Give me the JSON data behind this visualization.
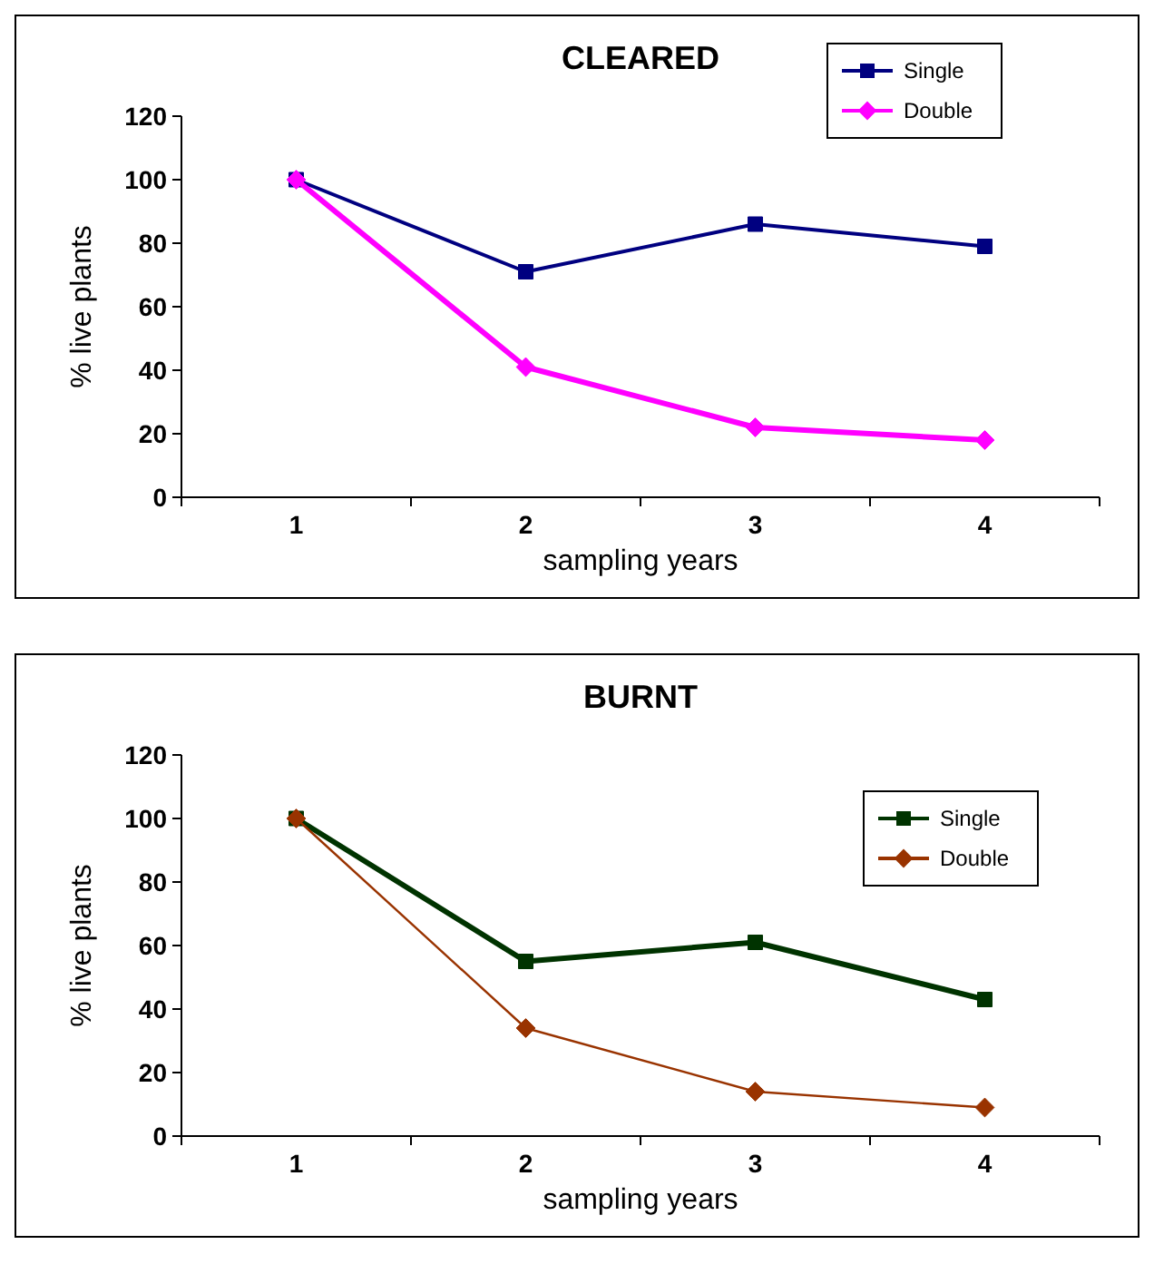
{
  "chart_data": [
    {
      "type": "line",
      "title": "CLEARED",
      "xlabel": "sampling years",
      "ylabel": "% live plants",
      "categories": [
        "1",
        "2",
        "3",
        "4"
      ],
      "ylim": [
        0,
        120
      ],
      "yticks": [
        0,
        20,
        40,
        60,
        80,
        100,
        120
      ],
      "grid": false,
      "legend": "top right",
      "series": [
        {
          "name": "Single",
          "color": "#000080",
          "marker": "square",
          "values": [
            100,
            71,
            86,
            79
          ]
        },
        {
          "name": "Double",
          "color": "#ff00ff",
          "marker": "diamond",
          "values": [
            100,
            41,
            22,
            18
          ]
        }
      ]
    },
    {
      "type": "line",
      "title": "BURNT",
      "xlabel": "sampling years",
      "ylabel": "% live plants",
      "categories": [
        "1",
        "2",
        "3",
        "4"
      ],
      "ylim": [
        0,
        120
      ],
      "yticks": [
        0,
        20,
        40,
        60,
        80,
        100,
        120
      ],
      "grid": false,
      "legend": "right",
      "series": [
        {
          "name": "Single",
          "color": "#003300",
          "marker": "square",
          "values": [
            100,
            55,
            61,
            43
          ]
        },
        {
          "name": "Double",
          "color": "#993300",
          "marker": "diamond",
          "values": [
            100,
            34,
            14,
            9
          ]
        }
      ]
    }
  ]
}
